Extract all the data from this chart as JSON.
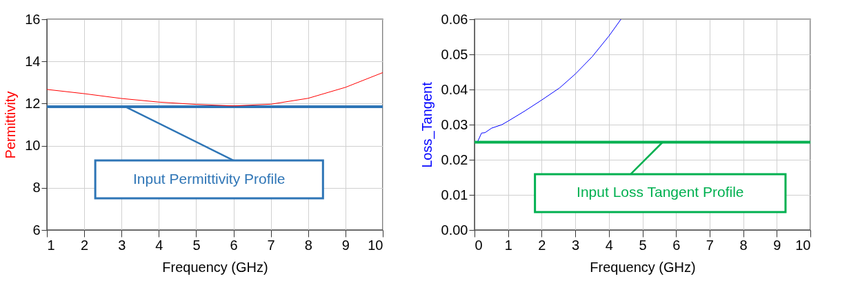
{
  "chart_data": [
    {
      "type": "line",
      "xlabel": "Frequency (GHz)",
      "ylabel": "Permittivity",
      "x": [
        1,
        2,
        3,
        4,
        5,
        6,
        7,
        8,
        9,
        10
      ],
      "series": [
        {
          "color": "#ff0000",
          "values": [
            12.67,
            12.47,
            12.24,
            12.07,
            11.96,
            11.89,
            11.97,
            12.25,
            12.77,
            13.47
          ]
        }
      ],
      "xlim": [
        1,
        10
      ],
      "ylim": [
        6,
        16
      ],
      "xticks": [
        1,
        2,
        3,
        4,
        5,
        6,
        7,
        8,
        9,
        10
      ],
      "yticks": [
        6,
        8,
        10,
        12,
        14,
        16
      ],
      "grid": true,
      "ref_lines": [
        {
          "axis": "y",
          "value": 11.85,
          "label": "Input Permittivity Profile",
          "color": "#2e75b6"
        }
      ]
    },
    {
      "type": "line",
      "xlabel": "Frequency (GHz)",
      "ylabel": "Loss_Tangent",
      "x": [
        0.1,
        0.21,
        0.31,
        0.51,
        0.82,
        1,
        1.5,
        2,
        2.54,
        3,
        3.5,
        4,
        4.36
      ],
      "series": [
        {
          "color": "#0000ff",
          "values": [
            0.0253,
            0.0276,
            0.0277,
            0.029,
            0.03,
            0.031,
            0.0339,
            0.037,
            0.0405,
            0.0444,
            0.0493,
            0.0552,
            0.06
          ]
        }
      ],
      "xlim": [
        0,
        10
      ],
      "ylim": [
        0,
        0.06
      ],
      "xticks": [
        0,
        1,
        2,
        3,
        4,
        5,
        6,
        7,
        8,
        9,
        10
      ],
      "yticks": [
        {
          "value": 0,
          "label": "0.00"
        },
        {
          "value": 0.01,
          "label": "0.01"
        },
        {
          "value": 0.02,
          "label": "0.02"
        },
        {
          "value": 0.03,
          "label": "0.03"
        },
        {
          "value": 0.04,
          "label": "0.04"
        },
        {
          "value": 0.05,
          "label": "0.05"
        },
        {
          "value": 0.06,
          "label": "0.06"
        }
      ],
      "grid": true,
      "ref_lines": [
        {
          "axis": "y",
          "value": 0.025,
          "label": "Input Loss Tangent Profile",
          "color": "#00b050"
        }
      ]
    }
  ]
}
